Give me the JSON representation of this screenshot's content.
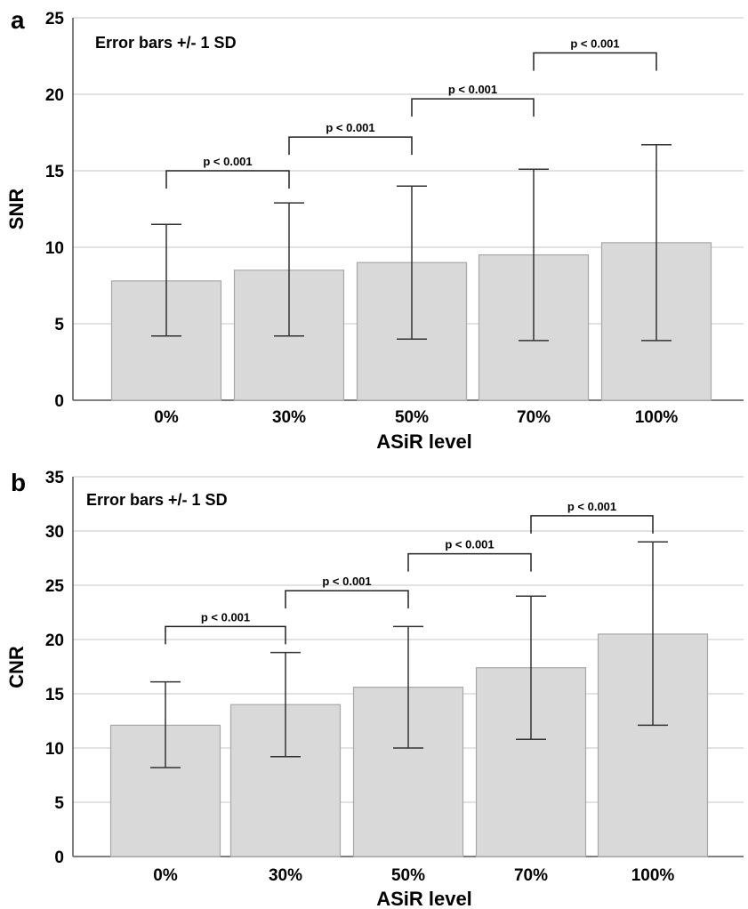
{
  "chart_data": [
    {
      "type": "bar",
      "panel": "a",
      "note": "Error bars +/- 1 SD",
      "xlabel": "ASiR level",
      "ylabel": "SNR",
      "categories": [
        "0%",
        "30%",
        "50%",
        "70%",
        "100%"
      ],
      "values": [
        7.8,
        8.5,
        9.0,
        9.5,
        10.3
      ],
      "error_low": [
        4.2,
        4.2,
        4.0,
        3.9,
        3.9
      ],
      "error_high": [
        11.5,
        12.9,
        14.0,
        15.1,
        16.7
      ],
      "ylim": [
        0,
        25
      ],
      "yticks": [
        "0",
        "5",
        "10",
        "15",
        "20",
        "25"
      ],
      "grid": true,
      "comparisons": [
        {
          "from": "0%",
          "to": "30%",
          "label": "p < 0.001",
          "y": 15
        },
        {
          "from": "30%",
          "to": "50%",
          "label": "p < 0.001",
          "y": 17.2
        },
        {
          "from": "50%",
          "to": "70%",
          "label": "p < 0.001",
          "y": 19.7
        },
        {
          "from": "70%",
          "to": "100%",
          "label": "p < 0.001",
          "y": 22.7
        }
      ]
    },
    {
      "type": "bar",
      "panel": "b",
      "note": "Error bars +/- 1 SD",
      "xlabel": "ASiR level",
      "ylabel": "CNR",
      "categories": [
        "0%",
        "30%",
        "50%",
        "70%",
        "100%"
      ],
      "values": [
        12.1,
        14.0,
        15.6,
        17.4,
        20.5
      ],
      "error_low": [
        8.2,
        9.2,
        10.0,
        10.8,
        12.1
      ],
      "error_high": [
        16.1,
        18.8,
        21.2,
        24.0,
        29.0
      ],
      "ylim": [
        0,
        35
      ],
      "yticks": [
        "0",
        "5",
        "10",
        "15",
        "20",
        "25",
        "30",
        "35"
      ],
      "grid": true,
      "comparisons": [
        {
          "from": "0%",
          "to": "30%",
          "label": "p < 0.001",
          "y": 21.2
        },
        {
          "from": "30%",
          "to": "50%",
          "label": "p < 0.001",
          "y": 24.5
        },
        {
          "from": "50%",
          "to": "70%",
          "label": "p < 0.001",
          "y": 27.9
        },
        {
          "from": "70%",
          "to": "100%",
          "label": "p < 0.001",
          "y": 31.4
        }
      ]
    }
  ]
}
